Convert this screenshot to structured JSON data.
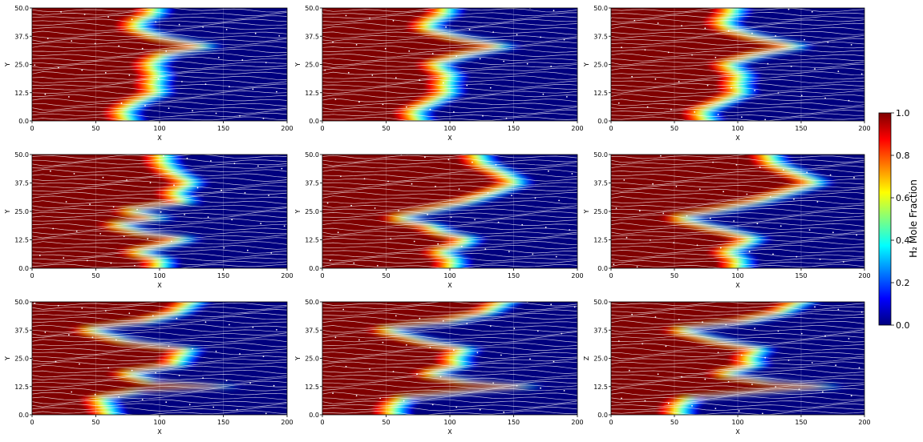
{
  "figure": {
    "colorbar": {
      "label": "H₂ Mole Fraction",
      "range": [
        0.0,
        1.0
      ],
      "ticks": [
        "0.0",
        "0.2",
        "0.4",
        "0.6",
        "0.8",
        "1.0"
      ],
      "colormap": "jet",
      "colors": [
        "#00007f",
        "#0000ff",
        "#007fff",
        "#00ffff",
        "#7fff7f",
        "#ffff00",
        "#ff7f00",
        "#ff0000",
        "#7f0000"
      ]
    },
    "streamline_color": "#ffffff"
  },
  "chart_data": [
    {
      "type": "heatmap",
      "row": 1,
      "col": 1,
      "xlabel": "X",
      "ylabel": "Y",
      "xlim": [
        0,
        200
      ],
      "ylim": [
        0,
        50
      ],
      "xticks": [
        "0",
        "50",
        "100",
        "150",
        "200"
      ],
      "yticks": [
        "0.0",
        "12.5",
        "25.0",
        "37.5",
        "50.0"
      ],
      "front_x_at_y": [
        [
          0,
          80
        ],
        [
          4,
          68
        ],
        [
          8,
          78
        ],
        [
          12.5,
          96
        ],
        [
          16,
          92
        ],
        [
          20,
          96
        ],
        [
          25,
          90
        ],
        [
          29,
          100
        ],
        [
          33,
          135
        ],
        [
          37.5,
          95
        ],
        [
          41,
          78
        ],
        [
          44,
          80
        ],
        [
          47,
          92
        ],
        [
          50,
          96
        ]
      ]
    },
    {
      "type": "heatmap",
      "row": 1,
      "col": 2,
      "xlabel": "X",
      "ylabel": "Y",
      "xlim": [
        0,
        200
      ],
      "ylim": [
        0,
        50
      ],
      "xticks": [
        "0",
        "50",
        "100",
        "150",
        "200"
      ],
      "yticks": [
        "0.0",
        "12.5",
        "25.0",
        "37.5",
        "50.0"
      ],
      "front_x_at_y": [
        [
          0,
          80
        ],
        [
          4,
          68
        ],
        [
          8,
          82
        ],
        [
          12.5,
          96
        ],
        [
          16,
          93
        ],
        [
          20,
          97
        ],
        [
          25,
          85
        ],
        [
          29,
          108
        ],
        [
          33,
          140
        ],
        [
          37.5,
          100
        ],
        [
          41,
          78
        ],
        [
          44,
          82
        ],
        [
          47,
          93
        ],
        [
          50,
          96
        ]
      ]
    },
    {
      "type": "heatmap",
      "row": 1,
      "col": 3,
      "xlabel": "X",
      "ylabel": "Y",
      "xlim": [
        0,
        200
      ],
      "ylim": [
        0,
        50
      ],
      "xticks": [
        "0",
        "50",
        "100",
        "150",
        "200"
      ],
      "yticks": [
        "0.0",
        "12.5",
        "25.0",
        "37.5",
        "50.0"
      ],
      "front_x_at_y": [
        [
          0,
          80
        ],
        [
          4,
          68
        ],
        [
          8,
          84
        ],
        [
          12.5,
          100
        ],
        [
          16,
          96
        ],
        [
          20,
          100
        ],
        [
          25,
          88
        ],
        [
          29,
          112
        ],
        [
          33,
          145
        ],
        [
          37.5,
          110
        ],
        [
          41,
          90
        ],
        [
          44,
          85
        ],
        [
          47,
          92
        ],
        [
          50,
          96
        ]
      ]
    },
    {
      "type": "heatmap",
      "row": 2,
      "col": 1,
      "xlabel": "X",
      "ylabel": "Y",
      "xlim": [
        0,
        200
      ],
      "ylim": [
        0,
        50
      ],
      "xticks": [
        "0",
        "50",
        "100",
        "150",
        "200"
      ],
      "yticks": [
        "0.0",
        "12.5",
        "25.0",
        "37.5",
        "50.0"
      ],
      "front_x_at_y": [
        [
          0,
          95
        ],
        [
          4,
          98
        ],
        [
          7,
          78
        ],
        [
          10,
          100
        ],
        [
          13,
          118
        ],
        [
          16,
          82
        ],
        [
          19,
          62
        ],
        [
          22,
          98
        ],
        [
          25,
          72
        ],
        [
          29,
          118
        ],
        [
          33,
          108
        ],
        [
          37.5,
          122
        ],
        [
          42,
          108
        ],
        [
          46,
          100
        ],
        [
          50,
          98
        ]
      ]
    },
    {
      "type": "heatmap",
      "row": 2,
      "col": 2,
      "xlabel": "X",
      "ylabel": "Y",
      "xlim": [
        0,
        200
      ],
      "ylim": [
        0,
        50
      ],
      "xticks": [
        "0",
        "50",
        "100",
        "150",
        "200"
      ],
      "yticks": [
        "0.0",
        "12.5",
        "25.0",
        "37.5",
        "50.0"
      ],
      "front_x_at_y": [
        [
          0,
          95
        ],
        [
          4,
          100
        ],
        [
          7,
          88
        ],
        [
          10,
          105
        ],
        [
          13,
          112
        ],
        [
          16,
          90
        ],
        [
          19,
          80
        ],
        [
          22,
          55
        ],
        [
          25,
          80
        ],
        [
          29,
          110
        ],
        [
          33,
          130
        ],
        [
          37.5,
          150
        ],
        [
          42,
          138
        ],
        [
          46,
          122
        ],
        [
          50,
          112
        ]
      ]
    },
    {
      "type": "heatmap",
      "row": 2,
      "col": 3,
      "xlabel": "X",
      "ylabel": "Y",
      "xlim": [
        0,
        200
      ],
      "ylim": [
        0,
        50
      ],
      "xticks": [
        "0",
        "50",
        "100",
        "150",
        "200"
      ],
      "yticks": [
        "0.0",
        "12.5",
        "25.0",
        "37.5",
        "50.0"
      ],
      "front_x_at_y": [
        [
          0,
          95
        ],
        [
          4,
          98
        ],
        [
          7,
          88
        ],
        [
          10,
          100
        ],
        [
          13,
          110
        ],
        [
          16,
          92
        ],
        [
          19,
          70
        ],
        [
          22,
          50
        ],
        [
          25,
          80
        ],
        [
          29,
          112
        ],
        [
          33,
          135
        ],
        [
          37.5,
          160
        ],
        [
          42,
          142
        ],
        [
          46,
          125
        ],
        [
          50,
          115
        ]
      ]
    },
    {
      "type": "heatmap",
      "row": 3,
      "col": 1,
      "xlabel": "X",
      "ylabel": "Y",
      "xlim": [
        0,
        200
      ],
      "ylim": [
        0,
        50
      ],
      "xticks": [
        "0",
        "50",
        "100",
        "150",
        "200"
      ],
      "yticks": [
        "0.0",
        "12.5",
        "25.0",
        "37.5",
        "50.0"
      ],
      "front_x_at_y": [
        [
          0,
          62
        ],
        [
          3,
          55
        ],
        [
          7,
          50
        ],
        [
          10,
          80
        ],
        [
          12.5,
          150
        ],
        [
          15,
          90
        ],
        [
          18,
          70
        ],
        [
          22,
          110
        ],
        [
          25,
          112
        ],
        [
          29,
          120
        ],
        [
          33,
          70
        ],
        [
          37.5,
          40
        ],
        [
          41,
          85
        ],
        [
          45,
          110
        ],
        [
          50,
          140
        ]
      ]
    },
    {
      "type": "heatmap",
      "row": 3,
      "col": 2,
      "xlabel": "X",
      "ylabel": "Y",
      "xlim": [
        0,
        200
      ],
      "ylim": [
        0,
        50
      ],
      "xticks": [
        "0",
        "50",
        "100",
        "150",
        "200"
      ],
      "yticks": [
        "0.0",
        "12.5",
        "25.0",
        "37.5",
        "50.0"
      ],
      "front_x_at_y": [
        [
          0,
          55
        ],
        [
          3,
          52
        ],
        [
          7,
          60
        ],
        [
          10,
          110
        ],
        [
          12.5,
          160
        ],
        [
          15,
          110
        ],
        [
          18,
          80
        ],
        [
          22,
          105
        ],
        [
          25,
          100
        ],
        [
          29,
          110
        ],
        [
          33,
          75
        ],
        [
          37.5,
          45
        ],
        [
          41,
          95
        ],
        [
          45,
          125
        ],
        [
          50,
          160
        ]
      ]
    },
    {
      "type": "heatmap",
      "row": 3,
      "col": 3,
      "xlabel": "X",
      "ylabel": "Z",
      "xlim": [
        0,
        200
      ],
      "ylim": [
        0,
        50
      ],
      "xticks": [
        "0",
        "50",
        "100",
        "150",
        "200"
      ],
      "yticks": [
        "0.0",
        "12.5",
        "25.0",
        "37.5",
        "50.0"
      ],
      "front_x_at_y": [
        [
          0,
          52
        ],
        [
          3,
          50
        ],
        [
          7,
          58
        ],
        [
          10,
          120
        ],
        [
          12.5,
          170
        ],
        [
          15,
          120
        ],
        [
          18,
          85
        ],
        [
          22,
          110
        ],
        [
          25,
          105
        ],
        [
          29,
          115
        ],
        [
          33,
          80
        ],
        [
          37.5,
          50
        ],
        [
          41,
          100
        ],
        [
          45,
          130
        ],
        [
          50,
          170
        ]
      ]
    }
  ]
}
